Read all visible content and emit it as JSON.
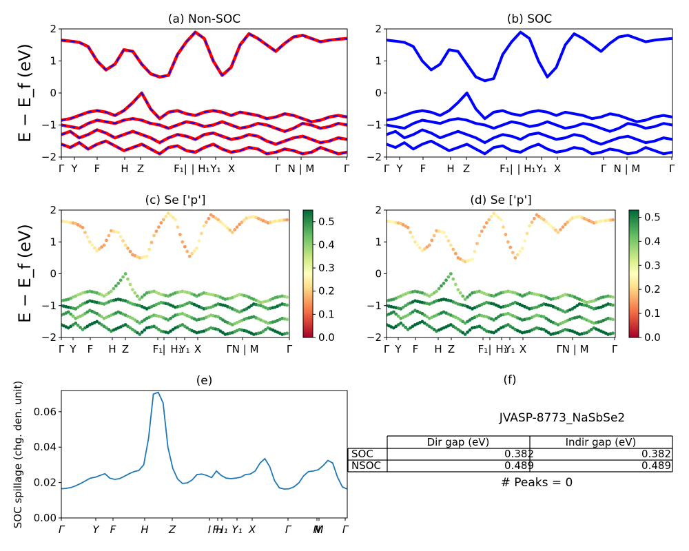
{
  "colors": {
    "nsoc_line": "#ff0000",
    "soc_line": "#0000ff",
    "spillage_line": "#1f77b4",
    "colormap": "RdYlGn"
  },
  "chart_data": [
    {
      "id": "a",
      "type": "line",
      "title": "(a) Non-SOC",
      "ylabel": "E − E_f (eV)",
      "ylim": [
        -2,
        2
      ],
      "yticks": [
        "2",
        "1",
        "0",
        "−1",
        "−2"
      ],
      "xticks": [
        "Γ",
        "Y",
        "F",
        "H",
        "Z",
        "F₁|",
        "| H₁",
        "Y₁",
        "X",
        "Γ",
        "N | M",
        "Γ"
      ],
      "series": [
        {
          "color": "red",
          "values": [
            1.65,
            1.62,
            1.58,
            1.45,
            1.0,
            0.72,
            0.9,
            1.35,
            1.3,
            0.9,
            0.6,
            0.5,
            0.55,
            1.2,
            1.6,
            1.9,
            1.7,
            1.0,
            0.55,
            0.8,
            1.5,
            1.85,
            1.7,
            1.5,
            1.3,
            1.55,
            1.75,
            1.8,
            1.7,
            1.6,
            1.65,
            1.68,
            1.7
          ]
        },
        {
          "color": "red",
          "values": [
            -0.85,
            -0.8,
            -0.7,
            -0.6,
            -0.55,
            -0.6,
            -0.7,
            -0.55,
            -0.3,
            0.0,
            -0.5,
            -0.8,
            -0.6,
            -0.55,
            -0.65,
            -0.7,
            -0.6,
            -0.55,
            -0.6,
            -0.7,
            -0.6,
            -0.65,
            -0.7,
            -0.8,
            -0.75,
            -0.65,
            -0.7,
            -0.8,
            -0.9,
            -0.85,
            -0.75,
            -0.7,
            -0.75
          ]
        },
        {
          "color": "red",
          "values": [
            -1.0,
            -1.05,
            -1.1,
            -0.95,
            -0.85,
            -0.9,
            -0.95,
            -0.85,
            -0.8,
            -0.85,
            -0.95,
            -1.0,
            -1.1,
            -1.0,
            -0.9,
            -0.95,
            -1.05,
            -1.0,
            -0.9,
            -1.0,
            -1.1,
            -1.05,
            -0.95,
            -1.0,
            -1.1,
            -1.2,
            -1.1,
            -0.95,
            -1.0,
            -1.1,
            -1.05,
            -0.95,
            -1.0
          ]
        },
        {
          "color": "red",
          "values": [
            -1.3,
            -1.2,
            -1.4,
            -1.3,
            -1.15,
            -1.25,
            -1.4,
            -1.3,
            -1.2,
            -1.3,
            -1.4,
            -1.55,
            -1.4,
            -1.3,
            -1.35,
            -1.45,
            -1.3,
            -1.25,
            -1.35,
            -1.45,
            -1.4,
            -1.3,
            -1.35,
            -1.5,
            -1.6,
            -1.5,
            -1.4,
            -1.35,
            -1.45,
            -1.55,
            -1.5,
            -1.4,
            -1.45
          ]
        },
        {
          "color": "red",
          "values": [
            -1.6,
            -1.7,
            -1.55,
            -1.75,
            -1.6,
            -1.5,
            -1.65,
            -1.8,
            -1.7,
            -1.6,
            -1.75,
            -1.9,
            -1.7,
            -1.65,
            -1.8,
            -1.85,
            -1.7,
            -1.6,
            -1.75,
            -1.85,
            -1.8,
            -1.7,
            -1.75,
            -1.9,
            -1.85,
            -1.75,
            -1.8,
            -1.9,
            -1.85,
            -1.7,
            -1.8,
            -1.9,
            -1.85
          ]
        }
      ]
    },
    {
      "id": "b",
      "type": "line",
      "title": "(b) SOC",
      "ylim": [
        -2,
        2
      ],
      "yticks": [
        "2",
        "1",
        "0",
        "−1",
        "−2"
      ],
      "xticks": [
        "Γ",
        "Y",
        "F",
        "H",
        "Z",
        "F₁|",
        "| H₁",
        "Y₁",
        "X",
        "Γ",
        "N | M",
        "Γ"
      ],
      "series": [
        {
          "color": "blue",
          "values": [
            1.65,
            1.62,
            1.58,
            1.45,
            1.0,
            0.72,
            0.9,
            1.35,
            1.3,
            0.9,
            0.5,
            0.38,
            0.45,
            1.2,
            1.6,
            1.9,
            1.7,
            1.0,
            0.5,
            0.8,
            1.5,
            1.85,
            1.7,
            1.5,
            1.3,
            1.55,
            1.75,
            1.8,
            1.7,
            1.6,
            1.65,
            1.68,
            1.7
          ]
        },
        {
          "color": "blue",
          "values": [
            -0.85,
            -0.8,
            -0.7,
            -0.6,
            -0.55,
            -0.6,
            -0.7,
            -0.55,
            -0.3,
            0.0,
            -0.5,
            -0.8,
            -0.6,
            -0.55,
            -0.65,
            -0.7,
            -0.6,
            -0.55,
            -0.6,
            -0.7,
            -0.6,
            -0.65,
            -0.7,
            -0.8,
            -0.75,
            -0.65,
            -0.7,
            -0.8,
            -0.9,
            -0.85,
            -0.75,
            -0.7,
            -0.75
          ]
        },
        {
          "color": "blue",
          "values": [
            -1.0,
            -1.05,
            -1.1,
            -0.95,
            -0.85,
            -0.9,
            -0.95,
            -0.85,
            -0.8,
            -0.85,
            -0.95,
            -1.0,
            -1.1,
            -1.0,
            -0.9,
            -0.95,
            -1.05,
            -1.0,
            -0.9,
            -1.0,
            -1.1,
            -1.05,
            -0.95,
            -1.0,
            -1.1,
            -1.2,
            -1.1,
            -0.95,
            -1.0,
            -1.1,
            -1.05,
            -0.95,
            -1.0
          ]
        },
        {
          "color": "blue",
          "values": [
            -1.3,
            -1.2,
            -1.4,
            -1.3,
            -1.15,
            -1.25,
            -1.4,
            -1.3,
            -1.2,
            -1.3,
            -1.4,
            -1.55,
            -1.4,
            -1.3,
            -1.35,
            -1.45,
            -1.3,
            -1.25,
            -1.35,
            -1.45,
            -1.4,
            -1.3,
            -1.35,
            -1.5,
            -1.6,
            -1.5,
            -1.4,
            -1.35,
            -1.45,
            -1.55,
            -1.5,
            -1.4,
            -1.45
          ]
        },
        {
          "color": "blue",
          "values": [
            -1.6,
            -1.7,
            -1.55,
            -1.75,
            -1.6,
            -1.5,
            -1.65,
            -1.8,
            -1.7,
            -1.6,
            -1.75,
            -1.9,
            -1.7,
            -1.65,
            -1.8,
            -1.85,
            -1.7,
            -1.6,
            -1.75,
            -1.85,
            -1.8,
            -1.7,
            -1.75,
            -1.9,
            -1.85,
            -1.75,
            -1.8,
            -1.9,
            -1.85,
            -1.7,
            -1.8,
            -1.9,
            -1.85
          ]
        }
      ]
    },
    {
      "id": "c",
      "type": "scatter",
      "title": "(c)  Se ['p']",
      "ylabel": "E − E_f (eV)",
      "ylim": [
        -2,
        2
      ],
      "yticks": [
        "2",
        "1",
        "0",
        "−1",
        "−2"
      ],
      "xticks": [
        "Γ",
        "Y",
        "F",
        "H",
        "Z",
        "F₁",
        "|",
        "H₁",
        "Y₁",
        "X",
        "ΓN | M",
        "Γ"
      ],
      "colorbar": {
        "min": 0.0,
        "max": 0.55,
        "ticks": [
          "0.0",
          "0.1",
          "0.2",
          "0.3",
          "0.4",
          "0.5"
        ]
      },
      "series": [
        {
          "weight": 0.2,
          "values": [
            1.65,
            1.62,
            1.58,
            1.45,
            1.0,
            0.72,
            0.9,
            1.35,
            1.3,
            0.9,
            0.6,
            0.5,
            0.55,
            1.2,
            1.6,
            1.9,
            1.7,
            1.0,
            0.55,
            0.8,
            1.5,
            1.85,
            1.7,
            1.5,
            1.3,
            1.55,
            1.75,
            1.8,
            1.7,
            1.6,
            1.65,
            1.68,
            1.7
          ]
        },
        {
          "weight": 0.42,
          "values": [
            -0.85,
            -0.8,
            -0.7,
            -0.6,
            -0.55,
            -0.6,
            -0.7,
            -0.55,
            -0.3,
            0.0,
            -0.5,
            -0.8,
            -0.6,
            -0.55,
            -0.65,
            -0.7,
            -0.6,
            -0.55,
            -0.6,
            -0.7,
            -0.6,
            -0.65,
            -0.7,
            -0.8,
            -0.75,
            -0.65,
            -0.7,
            -0.8,
            -0.9,
            -0.85,
            -0.75,
            -0.7,
            -0.75
          ]
        },
        {
          "weight": 0.5,
          "values": [
            -1.0,
            -1.05,
            -1.1,
            -0.95,
            -0.85,
            -0.9,
            -0.95,
            -0.85,
            -0.8,
            -0.85,
            -0.95,
            -1.0,
            -1.1,
            -1.0,
            -0.9,
            -0.95,
            -1.05,
            -1.0,
            -0.9,
            -1.0,
            -1.1,
            -1.05,
            -0.95,
            -1.0,
            -1.1,
            -1.2,
            -1.1,
            -0.95,
            -1.0,
            -1.1,
            -1.05,
            -0.95,
            -1.0
          ]
        },
        {
          "weight": 0.45,
          "values": [
            -1.3,
            -1.2,
            -1.4,
            -1.3,
            -1.15,
            -1.25,
            -1.4,
            -1.3,
            -1.2,
            -1.3,
            -1.4,
            -1.55,
            -1.4,
            -1.3,
            -1.35,
            -1.45,
            -1.3,
            -1.25,
            -1.35,
            -1.45,
            -1.4,
            -1.3,
            -1.35,
            -1.5,
            -1.6,
            -1.5,
            -1.4,
            -1.35,
            -1.45,
            -1.55,
            -1.5,
            -1.4,
            -1.45
          ]
        },
        {
          "weight": 0.52,
          "values": [
            -1.6,
            -1.7,
            -1.55,
            -1.75,
            -1.6,
            -1.5,
            -1.65,
            -1.8,
            -1.7,
            -1.6,
            -1.75,
            -1.9,
            -1.7,
            -1.65,
            -1.8,
            -1.85,
            -1.7,
            -1.6,
            -1.75,
            -1.85,
            -1.8,
            -1.7,
            -1.75,
            -1.9,
            -1.85,
            -1.75,
            -1.8,
            -1.9,
            -1.85,
            -1.7,
            -1.8,
            -1.9,
            -1.85
          ]
        }
      ]
    },
    {
      "id": "d",
      "type": "scatter",
      "title": "(d) Se ['p']",
      "ylim": [
        -2,
        2
      ],
      "yticks": [
        "2",
        "1",
        "0",
        "−1",
        "−2"
      ],
      "xticks": [
        "Γ",
        "Y",
        "F",
        "H",
        "Z",
        "F₁",
        "|",
        "H₁",
        "Y₁",
        "X",
        "ΓN | M",
        "Γ"
      ],
      "colorbar": {
        "min": 0.0,
        "max": 0.53,
        "ticks": [
          "0.0",
          "0.1",
          "0.2",
          "0.3",
          "0.4",
          "0.5"
        ]
      },
      "series": [
        {
          "weight": 0.2,
          "values": [
            1.65,
            1.62,
            1.58,
            1.45,
            1.0,
            0.72,
            0.9,
            1.35,
            1.3,
            0.9,
            0.5,
            0.38,
            0.45,
            1.2,
            1.6,
            1.9,
            1.7,
            1.0,
            0.5,
            0.8,
            1.5,
            1.85,
            1.7,
            1.5,
            1.3,
            1.55,
            1.75,
            1.8,
            1.7,
            1.6,
            1.65,
            1.68,
            1.7
          ]
        },
        {
          "weight": 0.42,
          "values": [
            -0.85,
            -0.8,
            -0.7,
            -0.6,
            -0.55,
            -0.6,
            -0.7,
            -0.55,
            -0.3,
            0.0,
            -0.5,
            -0.8,
            -0.6,
            -0.55,
            -0.65,
            -0.7,
            -0.6,
            -0.55,
            -0.6,
            -0.7,
            -0.6,
            -0.65,
            -0.7,
            -0.8,
            -0.75,
            -0.65,
            -0.7,
            -0.8,
            -0.9,
            -0.85,
            -0.75,
            -0.7,
            -0.75
          ]
        },
        {
          "weight": 0.5,
          "values": [
            -1.0,
            -1.05,
            -1.1,
            -0.95,
            -0.85,
            -0.9,
            -0.95,
            -0.85,
            -0.8,
            -0.85,
            -0.95,
            -1.0,
            -1.1,
            -1.0,
            -0.9,
            -0.95,
            -1.05,
            -1.0,
            -0.9,
            -1.0,
            -1.1,
            -1.05,
            -0.95,
            -1.0,
            -1.1,
            -1.2,
            -1.1,
            -0.95,
            -1.0,
            -1.1,
            -1.05,
            -0.95,
            -1.0
          ]
        },
        {
          "weight": 0.45,
          "values": [
            -1.3,
            -1.2,
            -1.4,
            -1.3,
            -1.15,
            -1.25,
            -1.4,
            -1.3,
            -1.2,
            -1.3,
            -1.4,
            -1.55,
            -1.4,
            -1.3,
            -1.35,
            -1.45,
            -1.3,
            -1.25,
            -1.35,
            -1.45,
            -1.4,
            -1.3,
            -1.35,
            -1.5,
            -1.6,
            -1.5,
            -1.4,
            -1.35,
            -1.45,
            -1.55,
            -1.5,
            -1.4,
            -1.45
          ]
        },
        {
          "weight": 0.52,
          "values": [
            -1.6,
            -1.7,
            -1.55,
            -1.75,
            -1.6,
            -1.5,
            -1.65,
            -1.8,
            -1.7,
            -1.6,
            -1.75,
            -1.9,
            -1.7,
            -1.65,
            -1.8,
            -1.85,
            -1.7,
            -1.6,
            -1.75,
            -1.85,
            -1.8,
            -1.7,
            -1.75,
            -1.9,
            -1.85,
            -1.75,
            -1.8,
            -1.9,
            -1.85,
            -1.7,
            -1.8,
            -1.9,
            -1.85
          ]
        }
      ]
    },
    {
      "id": "e",
      "type": "line",
      "title": "(e)",
      "ylabel": "SOC spillage (chg. den. unit)",
      "ylim": [
        0,
        0.072
      ],
      "yticks": [
        "0.00",
        "0.02",
        "0.04",
        "0.06"
      ],
      "xticks": [
        "Γ",
        "Y",
        "F",
        "H",
        "Z",
        "I",
        "F₁",
        "H₁",
        "Y₁",
        "X",
        "Γ",
        "N",
        "M",
        "Γ"
      ],
      "series": [
        {
          "name": "",
          "values": [
            0.0165,
            0.0167,
            0.0172,
            0.0182,
            0.0195,
            0.021,
            0.0225,
            0.023,
            0.024,
            0.025,
            0.0225,
            0.0218,
            0.0222,
            0.0235,
            0.025,
            0.0262,
            0.0268,
            0.03,
            0.045,
            0.07,
            0.071,
            0.065,
            0.04,
            0.028,
            0.022,
            0.0195,
            0.0198,
            0.0215,
            0.0245,
            0.0248,
            0.024,
            0.0228,
            0.0265,
            0.024,
            0.0225,
            0.0222,
            0.0225,
            0.023,
            0.0245,
            0.0248,
            0.0265,
            0.031,
            0.0335,
            0.029,
            0.021,
            0.017,
            0.0163,
            0.0165,
            0.0175,
            0.0198,
            0.0238,
            0.0262,
            0.0265,
            0.0272,
            0.0295,
            0.0325,
            0.031,
            0.023,
            0.0175,
            0.0163
          ]
        }
      ]
    }
  ],
  "panel_f": {
    "title": "(f)",
    "material": "JVASP-8773_NaSbSe2",
    "table": {
      "headers": [
        "Dir gap (eV)",
        "Indir gap (eV)"
      ],
      "rows": [
        {
          "label": "SOC",
          "dir": "0.382",
          "indir": "0.382"
        },
        {
          "label": "NSOC",
          "dir": "0.489",
          "indir": "0.489"
        }
      ]
    },
    "peaks": "# Peaks = 0"
  }
}
